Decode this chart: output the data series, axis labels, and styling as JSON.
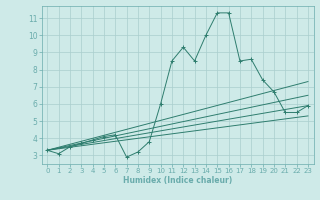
{
  "xlabel": "Humidex (Indice chaleur)",
  "bg_color": "#ceeae8",
  "line_color": "#2e7d6e",
  "grid_color": "#aacece",
  "spine_color": "#6aacac",
  "xlim": [
    -0.5,
    23.5
  ],
  "ylim": [
    2.5,
    11.7
  ],
  "xticks": [
    0,
    1,
    2,
    3,
    4,
    5,
    6,
    7,
    8,
    9,
    10,
    11,
    12,
    13,
    14,
    15,
    16,
    17,
    18,
    19,
    20,
    21,
    22,
    23
  ],
  "yticks": [
    3,
    4,
    5,
    6,
    7,
    8,
    9,
    10,
    11
  ],
  "curves": [
    {
      "x": [
        0,
        1,
        2,
        3,
        4,
        5,
        6,
        7,
        8,
        9,
        10,
        11,
        12,
        13,
        14,
        15,
        16,
        17,
        18,
        19,
        20,
        21,
        22,
        23
      ],
      "y": [
        3.3,
        3.1,
        3.5,
        3.7,
        3.9,
        4.1,
        4.2,
        2.9,
        3.2,
        3.8,
        6.0,
        8.5,
        9.3,
        8.5,
        10.0,
        11.3,
        11.3,
        8.5,
        8.6,
        7.4,
        6.7,
        5.5,
        5.5,
        5.9
      ],
      "marker": true
    },
    {
      "x": [
        0,
        23
      ],
      "y": [
        3.3,
        7.3
      ],
      "marker": false
    },
    {
      "x": [
        0,
        23
      ],
      "y": [
        3.3,
        6.5
      ],
      "marker": false
    },
    {
      "x": [
        0,
        23
      ],
      "y": [
        3.3,
        5.9
      ],
      "marker": false
    },
    {
      "x": [
        0,
        23
      ],
      "y": [
        3.3,
        5.3
      ],
      "marker": false
    }
  ]
}
